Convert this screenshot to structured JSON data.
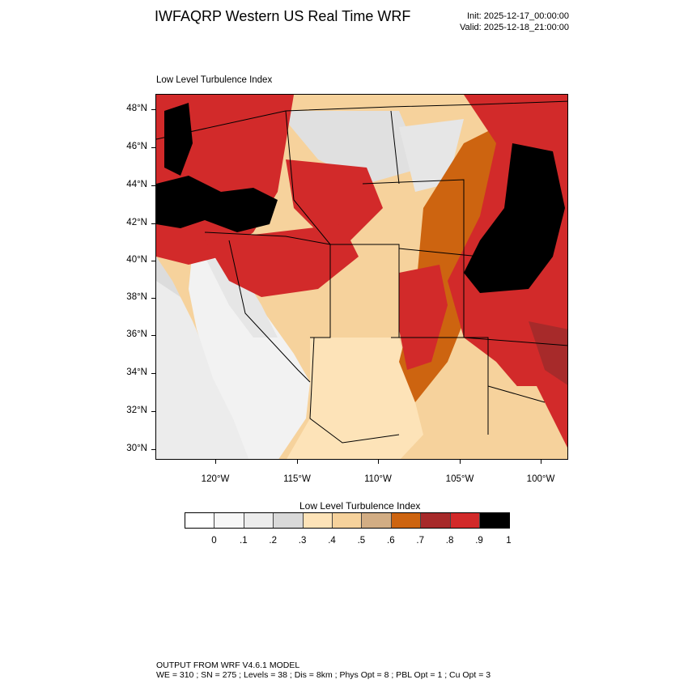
{
  "header": {
    "title": "IWFAQRP Western US Real Time WRF",
    "init": "Init: 2025-12-17_00:00:00",
    "valid": "Valid: 2025-12-18_21:00:00"
  },
  "panel": {
    "title": "Low Level Turbulence Index"
  },
  "map": {
    "lat_labels": [
      "48°N",
      "46°N",
      "44°N",
      "42°N",
      "40°N",
      "38°N",
      "36°N",
      "34°N",
      "32°N",
      "30°N"
    ],
    "lon_labels": [
      "120°W",
      "115°W",
      "110°W",
      "105°W",
      "100°W"
    ],
    "lat_range": [
      29.4,
      48.8
    ],
    "lon_range": [
      -123.6,
      -98.4
    ]
  },
  "colorbar": {
    "title": "Low Level Turbulence Index",
    "colors": [
      "#ffffff",
      "#f7f7f7",
      "#ececec",
      "#d9d9d9",
      "#fde3b8",
      "#f6d29c",
      "#d2ad84",
      "#cd6410",
      "#a72a2a",
      "#d22a2a",
      "#000000"
    ],
    "labels": [
      "0",
      ".1",
      ".2",
      ".3",
      ".4",
      ".5",
      ".6",
      ".7",
      ".8",
      ".9",
      "1"
    ]
  },
  "footer": {
    "line1": "OUTPUT FROM WRF V4.6.1 MODEL",
    "line2": "WE = 310 ; SN = 275 ; Levels = 38 ; Dis = 8km ; Phys Opt = 8 ; PBL Opt = 1 ; Cu Opt = 3"
  }
}
